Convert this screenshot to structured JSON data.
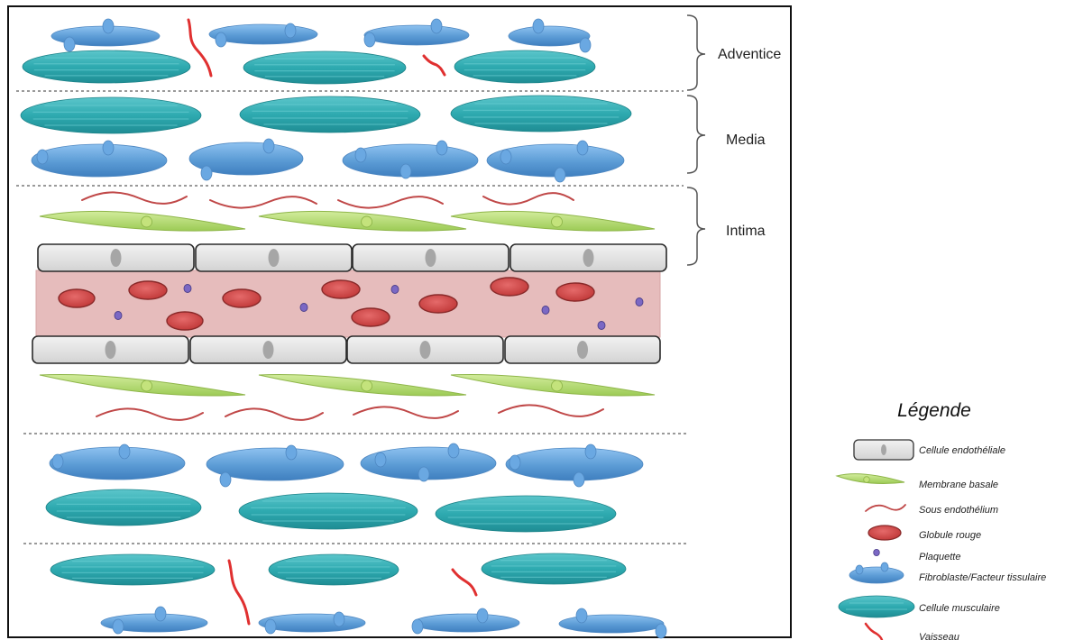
{
  "layers": {
    "adventice": "Adventice",
    "media": "Media",
    "intima": "Intima"
  },
  "legend": {
    "title": "Légende",
    "items": [
      {
        "label": "Cellule endothéliale",
        "icon": "endothelial-cell-icon"
      },
      {
        "label": "Membrane basale",
        "icon": "basement-membrane-icon"
      },
      {
        "label": "Sous endothélium",
        "icon": "subendothelium-icon"
      },
      {
        "label": "Globule rouge",
        "icon": "red-blood-cell-icon"
      },
      {
        "label": "Plaquette",
        "icon": "platelet-icon"
      },
      {
        "label": "Fibroblaste/Facteur tissulaire",
        "icon": "fibroblast-icon"
      },
      {
        "label": "Cellule musculaire",
        "icon": "muscle-cell-icon"
      },
      {
        "label": "Vaisseau",
        "icon": "vessel-icon"
      }
    ]
  },
  "colors": {
    "fibroblast": "#5b9bd5",
    "muscle": "#2eaab0",
    "membrane": "#a9d462",
    "endothelial": "#dcdcdc",
    "red_blood_cell": "#d04545",
    "platelet": "#7b68c4",
    "lumen": "#e6bcbc",
    "vessel": "#e03030",
    "subendothelium": "#c04848"
  }
}
